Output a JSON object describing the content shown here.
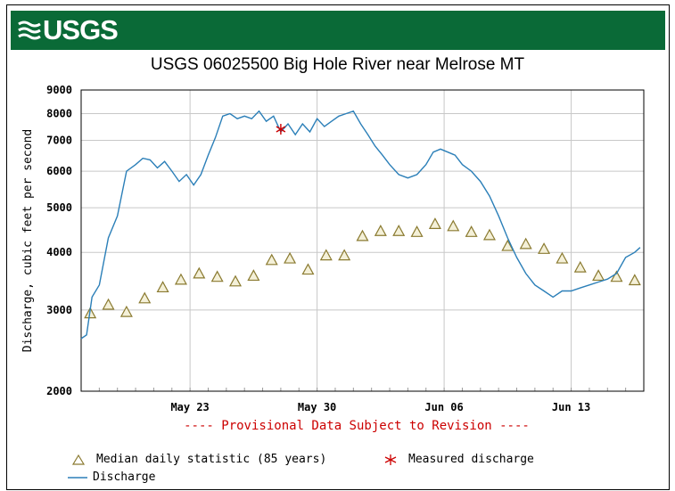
{
  "header": {
    "logo_text": "USGS",
    "title": "USGS 06025500 Big Hole River near Melrose MT"
  },
  "colors": {
    "banner": "#0a6a37",
    "discharge": "#2b7fb8",
    "median_marker": "#b59b3a",
    "measured": "#cc0000",
    "provisional": "#cc0000"
  },
  "provisional_note": "---- Provisional Data Subject to Revision ----",
  "legend": {
    "median": "Median daily statistic (85 years)",
    "measured": "Measured discharge",
    "discharge": "Discharge"
  },
  "chart_data": {
    "type": "line",
    "ylabel": "Discharge, cubic feet per second",
    "y_scale": "log",
    "ylim": [
      2000,
      9000
    ],
    "y_ticks": [
      2000,
      3000,
      4000,
      5000,
      6000,
      7000,
      8000,
      9000
    ],
    "x_ticks": [
      {
        "label": "May 23",
        "day": 23
      },
      {
        "label": "May 30",
        "day": 30
      },
      {
        "label": "Jun 06",
        "day": 37
      },
      {
        "label": "Jun 13",
        "day": 44
      }
    ],
    "xlim": [
      17,
      48
    ],
    "grid": true,
    "legend_position": "bottom",
    "series": [
      {
        "name": "Discharge",
        "type": "line",
        "x": [
          17.0,
          17.3,
          17.6,
          18.0,
          18.5,
          19.0,
          19.5,
          20.0,
          20.4,
          20.8,
          21.2,
          21.6,
          22.0,
          22.4,
          22.8,
          23.2,
          23.6,
          24.0,
          24.4,
          24.8,
          25.2,
          25.6,
          26.0,
          26.4,
          26.8,
          27.2,
          27.6,
          28.0,
          28.4,
          28.8,
          29.2,
          29.6,
          30.0,
          30.4,
          30.8,
          31.2,
          31.6,
          32.0,
          32.4,
          32.8,
          33.2,
          33.6,
          34.0,
          34.5,
          35.0,
          35.5,
          36.0,
          36.4,
          36.8,
          37.2,
          37.6,
          38.0,
          38.5,
          39.0,
          39.5,
          40.0,
          40.5,
          41.0,
          41.5,
          42.0,
          42.5,
          43.0,
          43.5,
          44.0,
          44.5,
          45.0,
          45.5,
          46.0,
          46.5,
          47.0,
          47.5,
          47.8
        ],
        "y": [
          2600,
          2650,
          3200,
          3400,
          4300,
          4800,
          6000,
          6200,
          6400,
          6350,
          6100,
          6300,
          6000,
          5700,
          5900,
          5600,
          5900,
          6500,
          7100,
          7900,
          8000,
          7800,
          7900,
          7800,
          8100,
          7700,
          7900,
          7300,
          7600,
          7200,
          7600,
          7300,
          7800,
          7500,
          7700,
          7900,
          8000,
          8100,
          7600,
          7200,
          6800,
          6500,
          6200,
          5900,
          5800,
          5900,
          6200,
          6600,
          6700,
          6600,
          6500,
          6200,
          6000,
          5700,
          5300,
          4800,
          4300,
          3900,
          3600,
          3400,
          3300,
          3200,
          3300,
          3300,
          3350,
          3400,
          3450,
          3500,
          3600,
          3900,
          4000,
          4100
        ]
      },
      {
        "name": "Median daily statistic (85 years)",
        "type": "scatter",
        "marker": "triangle",
        "x": [
          17.5,
          18.5,
          19.5,
          20.5,
          21.5,
          22.5,
          23.5,
          24.5,
          25.5,
          26.5,
          27.5,
          28.5,
          29.5,
          30.5,
          31.5,
          32.5,
          33.5,
          34.5,
          35.5,
          36.5,
          37.5,
          38.5,
          39.5,
          40.5,
          41.5,
          42.5,
          43.5,
          44.5,
          45.5,
          46.5,
          47.5
        ],
        "y": [
          2950,
          3080,
          2970,
          3180,
          3360,
          3490,
          3600,
          3540,
          3460,
          3560,
          3850,
          3880,
          3670,
          3940,
          3940,
          4340,
          4450,
          4450,
          4430,
          4610,
          4560,
          4430,
          4360,
          4130,
          4170,
          4070,
          3880,
          3710,
          3560,
          3540,
          3480
        ]
      },
      {
        "name": "Measured discharge",
        "type": "scatter",
        "marker": "asterisk",
        "x": [
          28.0
        ],
        "y": [
          7400
        ]
      }
    ]
  }
}
